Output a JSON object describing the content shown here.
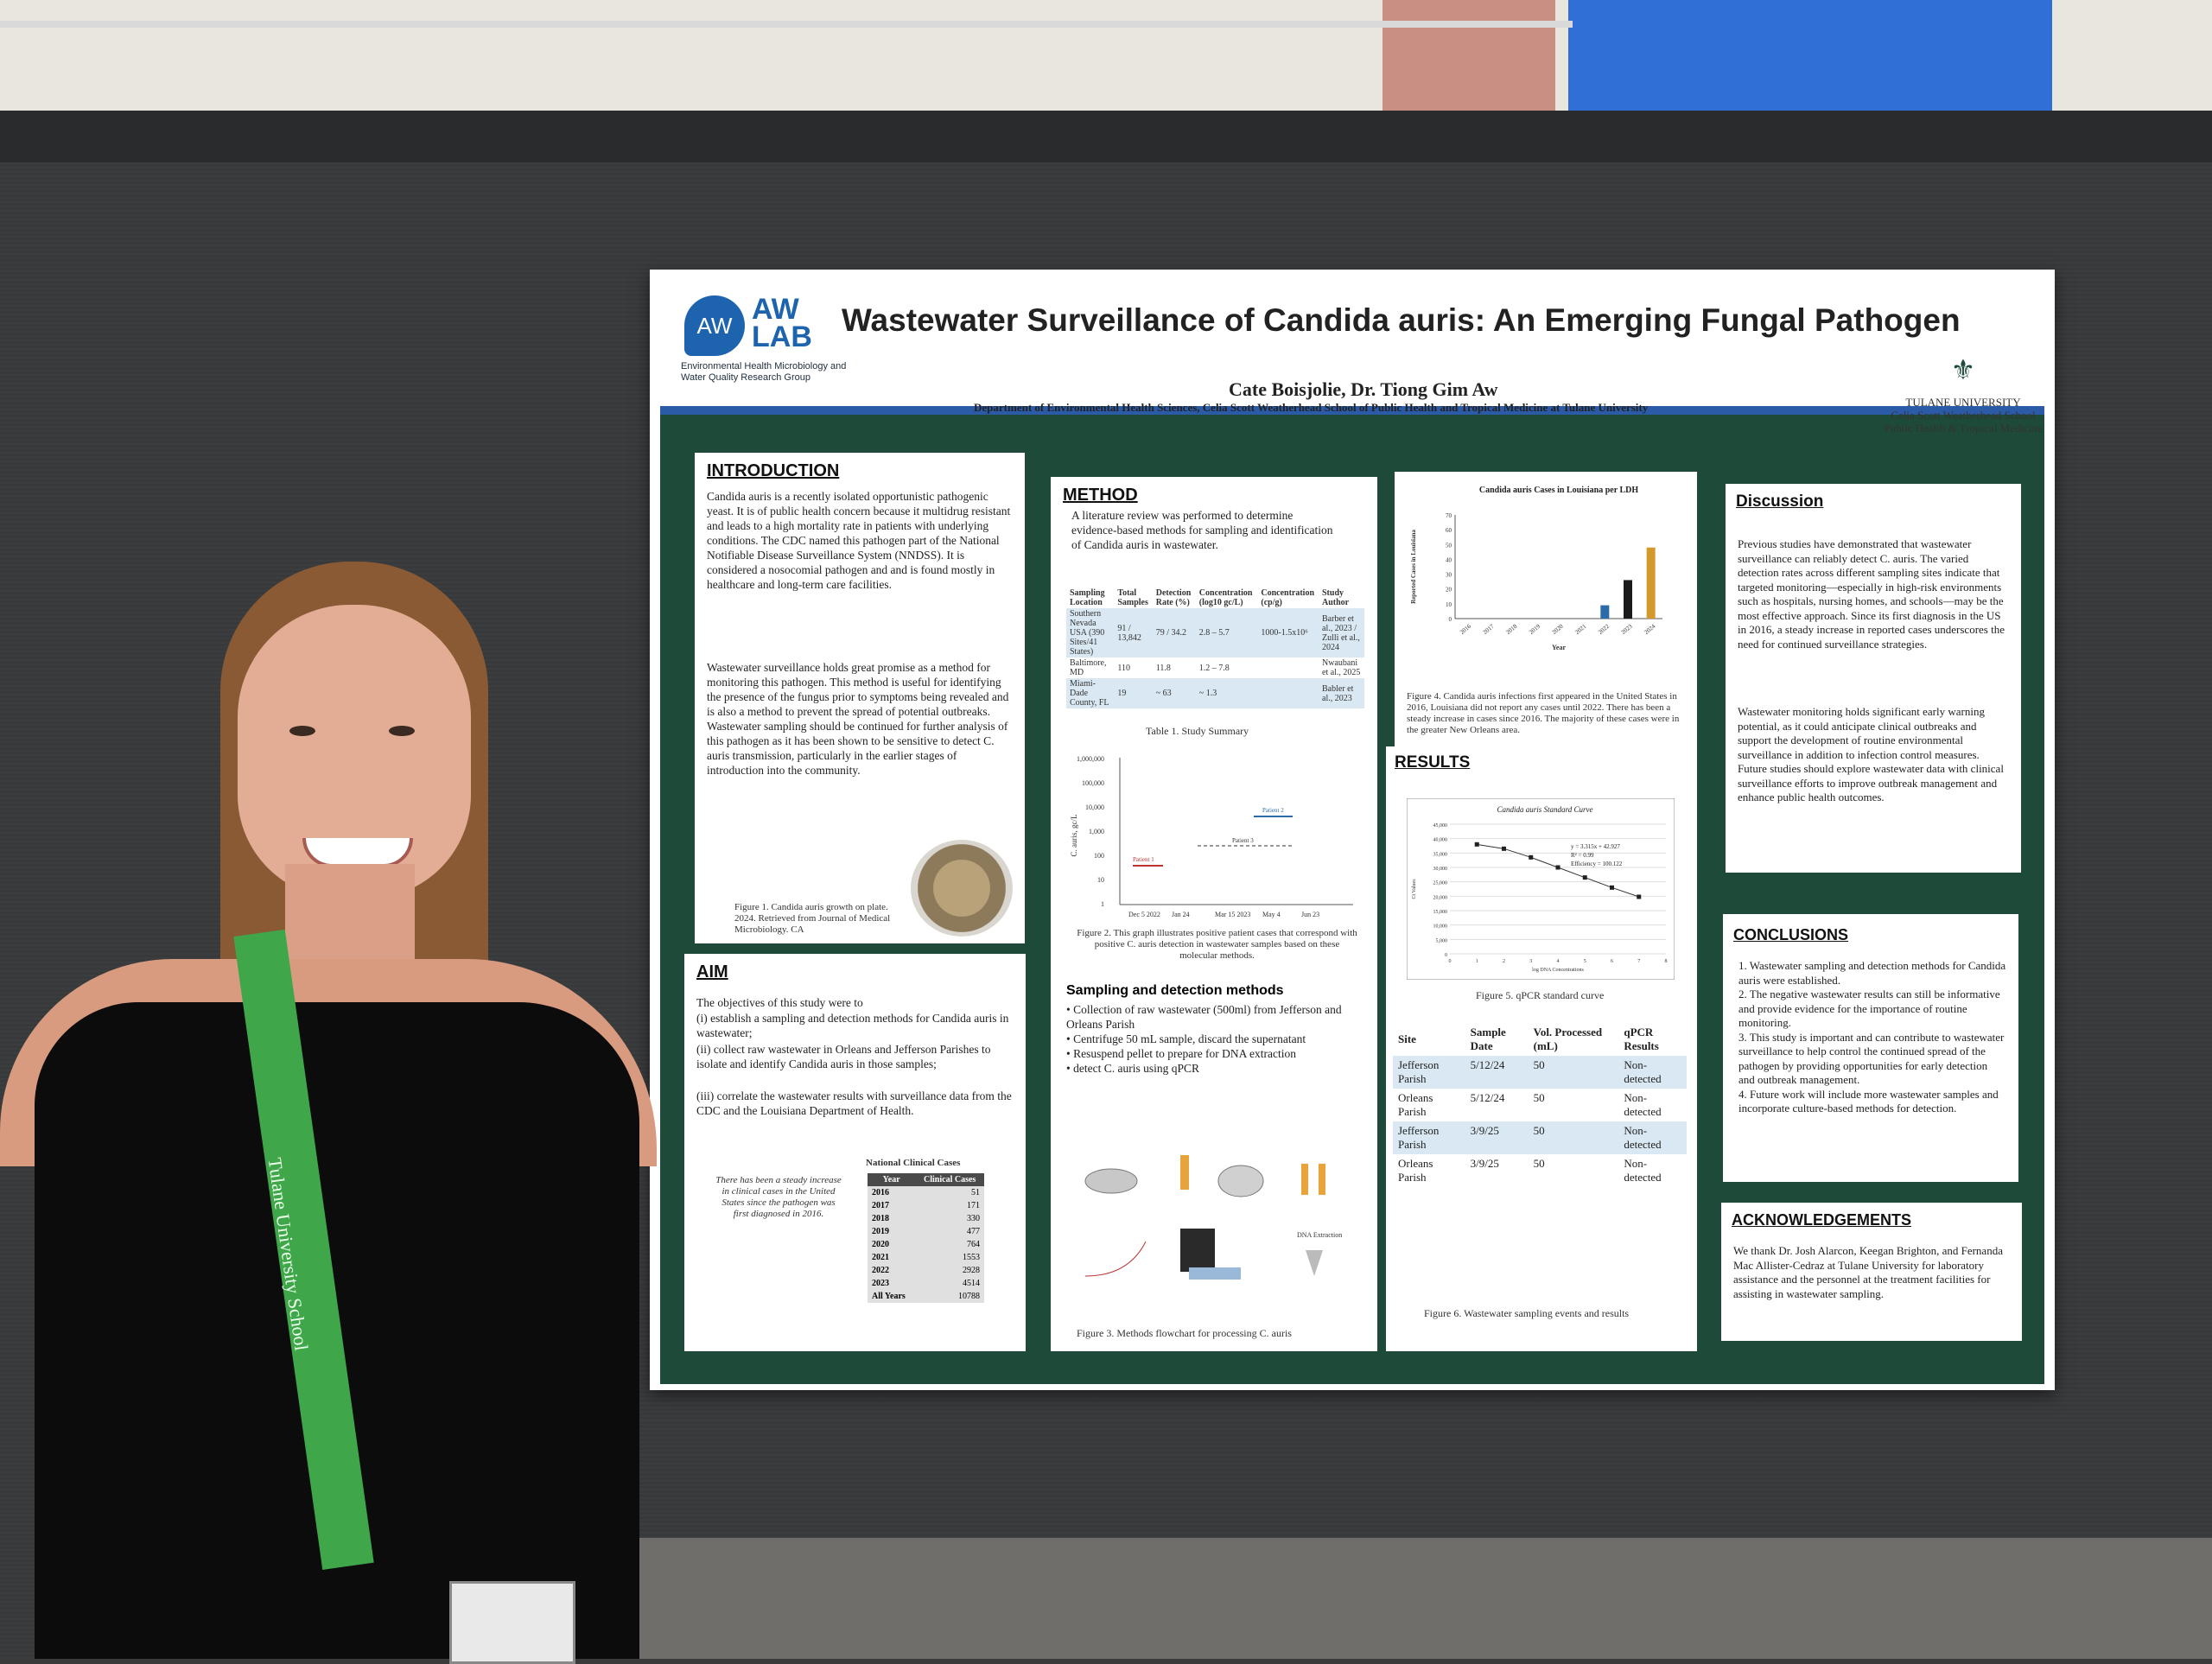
{
  "poster": {
    "logo_mark": "AW",
    "logo_text": "AW LAB",
    "logo_sub": "Environmental Health Microbiology and Water Quality Research Group",
    "title": "Wastewater Surveillance of Candida auris: An Emerging Fungal Pathogen",
    "authors": "Cate Boisjolie, Dr. Tiong Gim Aw",
    "department": "Department of Environmental Health Sciences, Celia Scott Weatherhead School of Public Health and Tropical Medicine at Tulane University",
    "university": "TULANE UNIVERSITY",
    "university_sub": "Celia Scott Weatherhead School Public Health & Tropical Medicine"
  },
  "introduction": {
    "heading": "INTRODUCTION",
    "p1": "Candida auris is a recently isolated opportunistic pathogenic yeast. It is of public health concern because it multidrug resistant and leads to a high mortality rate in patients with underlying conditions. The CDC named this pathogen part of the National Notifiable Disease Surveillance System (NNDSS). It is considered a nosocomial pathogen and and is found mostly in healthcare and long-term care facilities.",
    "p2": "Wastewater surveillance holds great promise as a method for monitoring this pathogen. This method is useful for identifying the presence of the fungus prior to symptoms being revealed and is also a method to prevent the spread of potential outbreaks. Wastewater sampling should be continued for further analysis of this pathogen as it has been shown to be sensitive to detect C. auris transmission, particularly in the earlier stages of introduction into the community.",
    "fig1_caption": "Figure 1. Candida auris growth on plate. 2024. Retrieved from Journal of Medical Microbiology. CA"
  },
  "aim": {
    "heading": "AIM",
    "intro": "The objectives of this study were to",
    "items": [
      "(i) establish a sampling and detection methods for Candida auris in wastewater;",
      "(ii) collect raw wastewater in Orleans and Jefferson Parishes to isolate and identify Candida auris in those samples;",
      "(iii) correlate the wastewater results with surveillance data from the CDC and the Louisiana Department of Health."
    ],
    "note": "There has been a steady increase in clinical cases in the United States since the pathogen was first diagnosed in 2016.",
    "table_title": "National Clinical Cases",
    "table_headers": [
      "Year",
      "Clinical Cases"
    ],
    "table_rows": [
      [
        "2016",
        "51"
      ],
      [
        "2017",
        "171"
      ],
      [
        "2018",
        "330"
      ],
      [
        "2019",
        "477"
      ],
      [
        "2020",
        "764"
      ],
      [
        "2021",
        "1553"
      ],
      [
        "2022",
        "2928"
      ],
      [
        "2023",
        "4514"
      ],
      [
        "All Years",
        "10788"
      ]
    ]
  },
  "method": {
    "heading": "METHOD",
    "intro": "A literature review was performed to determine evidence-based methods for sampling and identification of Candida auris in wastewater.",
    "table_headers": [
      "Sampling Location",
      "Total Samples",
      "Detection Rate (%)",
      "Concentration (log10 gc/L)",
      "Concentration (cp/g)",
      "Study Author"
    ],
    "table_rows": [
      [
        "Southern Nevada USA (390 Sites/41 States)",
        "91 / 13,842",
        "79 / 34.2",
        "2.8 – 5.7",
        "1000-1.5x10⁶",
        "Barber et al., 2023 / Zulli et al., 2024"
      ],
      [
        "Baltimore, MD",
        "110",
        "11.8",
        "1.2 – 7.8",
        "",
        "Nwaubani et al., 2025"
      ],
      [
        "Miami-Dade County, FL",
        "19",
        "~ 63",
        "~ 1.3",
        "",
        "Babler et al., 2023"
      ]
    ],
    "table_caption": "Table 1. Study Summary",
    "fig2_caption": "Figure 2. This graph illustrates positive patient cases that correspond with positive C. auris detection in wastewater samples based on these molecular methods.",
    "fig2_y_ticks": [
      "1,000,000",
      "100,000",
      "10,000",
      "1,000",
      "100",
      "10",
      "1"
    ],
    "fig2_x_ticks": [
      "Dec 5 2022",
      "Jan 24",
      "Mar 15 2023",
      "May 4",
      "Jun 23"
    ],
    "fig2_ylabel": "C. auris, gc/L",
    "fig2_labels": [
      "Patient 1",
      "Patient 2",
      "Patient 3"
    ],
    "sub_heading": "Sampling and detection methods",
    "steps": [
      "Collection of raw wastewater (500ml) from Jefferson and Orleans Parish",
      "Centrifuge 50 mL sample, discard the supernatant",
      "Resuspend pellet to prepare for DNA extraction",
      "detect C. auris using qPCR"
    ],
    "fig3_label": "DNA Extraction",
    "fig3_caption": "Figure 3. Methods flowchart for processing C. auris"
  },
  "cases_chart": {
    "chart_data": {
      "type": "bar",
      "title": "Candida auris Cases in Louisiana per LDH",
      "xlabel": "Year",
      "ylabel": "Reported Cases in Louisiana",
      "categories": [
        "2016",
        "2017",
        "2018",
        "2019",
        "2020",
        "2021",
        "2022",
        "2023",
        "2024"
      ],
      "y_ticks": [
        "0",
        "10",
        "20",
        "30",
        "40",
        "50",
        "60",
        "70"
      ],
      "values": [
        0,
        0,
        0,
        0,
        0,
        0,
        9,
        26,
        48
      ],
      "ylim": [
        0,
        70
      ],
      "colors": [
        "#2b6ca8",
        "#2b6ca8",
        "#2b6ca8",
        "#2b6ca8",
        "#2b6ca8",
        "#2b6ca8",
        "#2b6ca8",
        "#1b1b1b",
        "#d39a2b"
      ]
    },
    "caption": "Figure 4. Candida auris infections first appeared in the United States in 2016, Louisiana did not report any cases until 2022. There has been a steady increase in cases since 2016. The majority of these cases were in the greater New Orleans area."
  },
  "results": {
    "heading": "RESULTS",
    "std_chart": {
      "chart_data": {
        "type": "scatter",
        "title": "Candida auris Standard Curve",
        "xlabel": "log DNA Concentrations",
        "ylabel": "Ct Values",
        "x_ticks": [
          "0",
          "1",
          "2",
          "3",
          "4",
          "5",
          "6",
          "7",
          "8"
        ],
        "y_ticks": [
          "0",
          "5,000",
          "10,000",
          "15,000",
          "20,000",
          "25,000",
          "30,000",
          "35,000",
          "40,000",
          "45,000"
        ],
        "x": [
          1,
          2,
          3,
          4,
          5,
          6,
          7
        ],
        "y": [
          38000,
          36500,
          33500,
          30000,
          26500,
          23000,
          19800
        ],
        "xlim": [
          0,
          8
        ],
        "ylim": [
          0,
          45000
        ],
        "annotations": [
          "y = 3.315x + 42.927",
          "R² = 0.99",
          "Efficiency = 100.122"
        ]
      },
      "caption": "Figure 5. qPCR standard curve"
    },
    "table_headers": [
      "Site",
      "Sample Date",
      "Vol. Processed (mL)",
      "qPCR Results"
    ],
    "table_rows": [
      [
        "Jefferson Parish",
        "5/12/24",
        "50",
        "Non-detected"
      ],
      [
        "Orleans Parish",
        "5/12/24",
        "50",
        "Non-detected"
      ],
      [
        "Jefferson Parish",
        "3/9/25",
        "50",
        "Non-detected"
      ],
      [
        "Orleans Parish",
        "3/9/25",
        "50",
        "Non-detected"
      ]
    ],
    "table_caption": "Figure 6. Wastewater sampling events and results"
  },
  "discussion": {
    "heading": "Discussion",
    "p1": "Previous studies have demonstrated that wastewater surveillance can reliably detect C. auris. The varied detection rates across different sampling sites indicate that targeted monitoring—especially in high-risk environments such as hospitals, nursing homes, and schools—may be the most effective approach. Since its first diagnosis in the US in 2016, a steady increase in reported cases underscores the need for continued surveillance strategies.",
    "p2": "Wastewater monitoring holds significant early warning potential, as it could anticipate clinical outbreaks and support the development of routine environmental surveillance in addition to infection control measures. Future studies should explore wastewater data with clinical surveillance efforts to improve outbreak management and enhance public health outcomes."
  },
  "conclusions": {
    "heading": "CONCLUSIONS",
    "items": [
      "1. Wastewater sampling and detection methods for Candida auris were established.",
      "2. The negative wastewater results can still be informative and provide evidence for the importance of routine monitoring.",
      "3. This study is important and can contribute to wastewater surveillance to help control the continued spread of the pathogen by providing opportunities for early detection and outbreak management.",
      "4. Future work will include more wastewater samples and incorporate culture-based methods for detection."
    ]
  },
  "acknowledgements": {
    "heading": "ACKNOWLEDGEMENTS",
    "text": "We thank Dr. Josh Alarcon, Keegan Brighton, and Fernanda Mac Allister-Cedraz at Tulane University for laboratory assistance and the personnel at the treatment facilities for assisting in wastewater sampling."
  },
  "lanyard_text": "Tulane University School"
}
